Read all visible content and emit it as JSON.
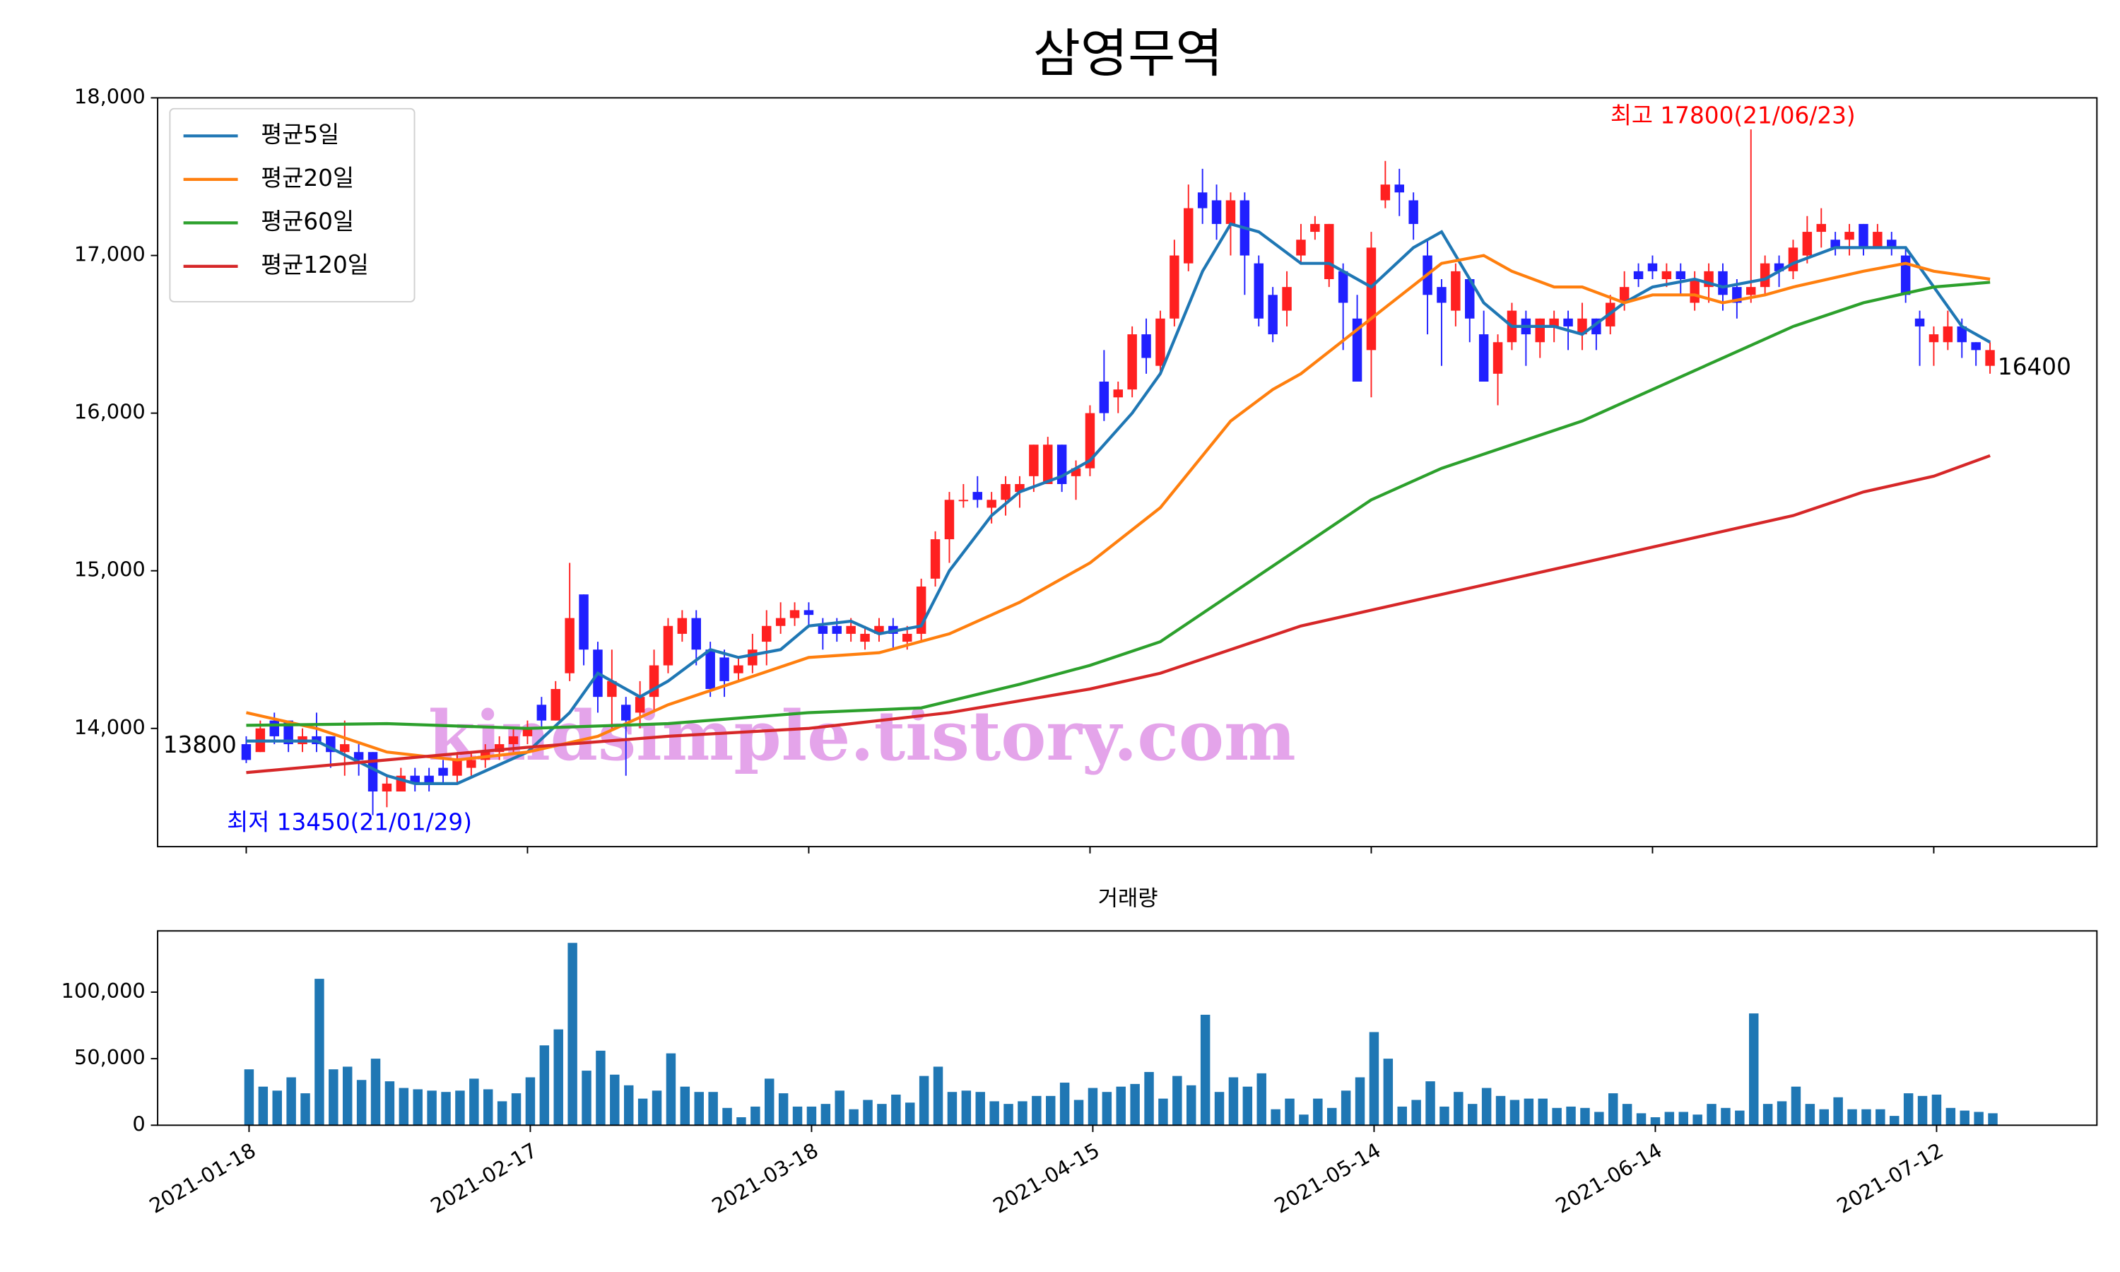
{
  "watermark": "kindsimple.tistory.com",
  "chart_data": [
    {
      "type": "candlestick",
      "title": "삼영무역",
      "up_color": "#ff2020",
      "down_color": "#2020ff",
      "open": [
        13900,
        13850,
        14050,
        14050,
        13900,
        13950,
        13950,
        13850,
        13850,
        13850,
        13600,
        13600,
        13700,
        13700,
        13750,
        13700,
        13750,
        13800,
        13850,
        13900,
        13950,
        14150,
        14050,
        14350,
        14850,
        14500,
        14200,
        14150,
        14100,
        14200,
        14400,
        14600,
        14700,
        14500,
        14450,
        14350,
        14400,
        14550,
        14650,
        14700,
        14750,
        14650,
        14650,
        14600,
        14550,
        14600,
        14650,
        14550,
        14600,
        14950,
        15200,
        15450,
        15500,
        15400,
        15450,
        15500,
        15600,
        15550,
        15800,
        15600,
        15650,
        16200,
        16100,
        16150,
        16500,
        16300,
        16600,
        16950,
        17400,
        17350,
        17200,
        17350,
        16950,
        16750,
        16650,
        17000,
        17150,
        16850,
        16900,
        16600,
        16400,
        17350,
        17450,
        17350,
        17000,
        16800,
        16650,
        16850,
        16500,
        16250,
        16450,
        16600,
        16450,
        16550,
        16600,
        16500,
        16600,
        16550,
        16700,
        16900,
        16950,
        16850,
        16900,
        16700,
        16800,
        16900,
        16800,
        16750,
        16800,
        16950,
        16900,
        17000,
        17150,
        17100,
        17100,
        17200,
        17050,
        17100,
        17000,
        16600,
        16450,
        16450,
        16550,
        16450,
        16300
      ],
      "high": [
        13950,
        14050,
        14100,
        14050,
        14000,
        14100,
        13950,
        14050,
        13900,
        13850,
        13700,
        13750,
        13750,
        13750,
        13800,
        13850,
        13850,
        13900,
        13950,
        14000,
        14050,
        14200,
        14300,
        15050,
        14850,
        14550,
        14500,
        14200,
        14300,
        14500,
        14700,
        14750,
        14750,
        14550,
        14500,
        14450,
        14600,
        14750,
        14800,
        14800,
        14800,
        14700,
        14700,
        14700,
        14650,
        14700,
        14700,
        14650,
        14950,
        15250,
        15500,
        15550,
        15600,
        15500,
        15600,
        15600,
        15800,
        15850,
        15800,
        15700,
        16050,
        16400,
        16200,
        16550,
        16600,
        16650,
        17100,
        17450,
        17550,
        17450,
        17400,
        17400,
        17000,
        16800,
        16900,
        17200,
        17250,
        17200,
        16950,
        16750,
        17150,
        17600,
        17550,
        17400,
        17100,
        16850,
        16950,
        16850,
        16650,
        16500,
        16700,
        16650,
        16600,
        16650,
        16650,
        16700,
        16600,
        16750,
        16900,
        16950,
        17000,
        16950,
        16950,
        16900,
        16950,
        16950,
        16850,
        17800,
        17000,
        17000,
        17100,
        17250,
        17300,
        17150,
        17200,
        17200,
        17200,
        17150,
        17050,
        16650,
        16550,
        16650,
        16600,
        16450,
        16450
      ],
      "low": [
        13780,
        13850,
        13900,
        13850,
        13850,
        13850,
        13750,
        13700,
        13700,
        13450,
        13500,
        13600,
        13600,
        13600,
        13650,
        13650,
        13700,
        13750,
        13800,
        13850,
        13900,
        14000,
        14050,
        14300,
        14400,
        14100,
        14000,
        13700,
        14000,
        14100,
        14350,
        14550,
        14400,
        14200,
        14200,
        14300,
        14350,
        14400,
        14600,
        14650,
        14650,
        14500,
        14550,
        14550,
        14500,
        14550,
        14500,
        14500,
        14550,
        14900,
        15050,
        15400,
        15400,
        15300,
        15350,
        15400,
        15500,
        15550,
        15500,
        15450,
        15600,
        15950,
        16000,
        16100,
        16250,
        16250,
        16550,
        16900,
        17200,
        17100,
        17000,
        16750,
        16550,
        16450,
        16550,
        16950,
        17100,
        16800,
        16400,
        16200,
        16100,
        17300,
        17250,
        17100,
        16500,
        16300,
        16550,
        16450,
        16200,
        16050,
        16400,
        16300,
        16350,
        16450,
        16400,
        16400,
        16400,
        16500,
        16650,
        16800,
        16850,
        16800,
        16750,
        16650,
        16700,
        16650,
        16600,
        16700,
        16750,
        16800,
        16850,
        16950,
        17050,
        17000,
        17000,
        17000,
        17050,
        17000,
        16700,
        16300,
        16300,
        16400,
        16350,
        16300,
        16250
      ],
      "close": [
        13800,
        14000,
        13950,
        13900,
        13950,
        13900,
        13850,
        13900,
        13800,
        13600,
        13650,
        13700,
        13650,
        13650,
        13700,
        13800,
        13800,
        13850,
        13900,
        13950,
        14000,
        14050,
        14250,
        14700,
        14500,
        14200,
        14300,
        14050,
        14200,
        14400,
        14650,
        14700,
        14500,
        14250,
        14300,
        14400,
        14500,
        14650,
        14700,
        14750,
        14720,
        14600,
        14600,
        14650,
        14600,
        14650,
        14600,
        14600,
        14900,
        15200,
        15450,
        15450,
        15450,
        15450,
        15550,
        15550,
        15800,
        15800,
        15550,
        15650,
        16000,
        16000,
        16150,
        16500,
        16350,
        16600,
        17000,
        17300,
        17300,
        17200,
        17350,
        17000,
        16600,
        16500,
        16800,
        17100,
        17200,
        17200,
        16700,
        16200,
        17050,
        17450,
        17400,
        17200,
        16750,
        16700,
        16900,
        16600,
        16200,
        16450,
        16650,
        16500,
        16600,
        16600,
        16550,
        16600,
        16500,
        16700,
        16800,
        16850,
        16900,
        16900,
        16850,
        16850,
        16900,
        16750,
        16700,
        16800,
        16950,
        16900,
        17050,
        17150,
        17200,
        17050,
        17150,
        17050,
        17150,
        17050,
        16750,
        16550,
        16500,
        16550,
        16450,
        16400,
        16400
      ],
      "series": [
        {
          "name": "평균5일",
          "color": "#1f77b4",
          "x": [
            0,
            5,
            10,
            12,
            15,
            20,
            23,
            25,
            28,
            30,
            33,
            35,
            38,
            40,
            43,
            45,
            48,
            50,
            53,
            55,
            58,
            60,
            63,
            65,
            68,
            70,
            72,
            75,
            77,
            79,
            80,
            83,
            85,
            88,
            90,
            93,
            95,
            98,
            100,
            103,
            105,
            108,
            110,
            113,
            115,
            118,
            120,
            122,
            124
          ],
          "values": [
            13920,
            13920,
            13700,
            13650,
            13650,
            13850,
            14100,
            14350,
            14200,
            14300,
            14500,
            14450,
            14500,
            14650,
            14680,
            14600,
            14650,
            15000,
            15350,
            15500,
            15600,
            15700,
            16000,
            16250,
            16900,
            17200,
            17150,
            16950,
            16950,
            16850,
            16800,
            17050,
            17150,
            16700,
            16550,
            16550,
            16500,
            16700,
            16800,
            16850,
            16800,
            16850,
            16950,
            17050,
            17050,
            17050,
            16800,
            16550,
            16450
          ]
        },
        {
          "name": "평균20일",
          "color": "#ff7f0e",
          "x": [
            0,
            5,
            10,
            15,
            20,
            25,
            30,
            35,
            40,
            45,
            50,
            55,
            60,
            65,
            70,
            73,
            75,
            80,
            85,
            88,
            90,
            93,
            95,
            98,
            100,
            103,
            105,
            108,
            110,
            115,
            118,
            120,
            124
          ],
          "values": [
            14100,
            14000,
            13850,
            13800,
            13850,
            13950,
            14150,
            14300,
            14450,
            14480,
            14600,
            14800,
            15050,
            15400,
            15950,
            16150,
            16250,
            16600,
            16950,
            17000,
            16900,
            16800,
            16800,
            16700,
            16750,
            16750,
            16700,
            16750,
            16800,
            16900,
            16950,
            16900,
            16850
          ]
        },
        {
          "name": "평균60일",
          "color": "#2ca02c",
          "x": [
            0,
            10,
            20,
            30,
            40,
            48,
            55,
            60,
            65,
            70,
            75,
            80,
            85,
            90,
            95,
            100,
            105,
            110,
            115,
            120,
            124
          ],
          "values": [
            14020,
            14030,
            14000,
            14030,
            14100,
            14130,
            14280,
            14400,
            14550,
            14850,
            15150,
            15450,
            15650,
            15800,
            15950,
            16150,
            16350,
            16550,
            16700,
            16800,
            16830
          ]
        },
        {
          "name": "평균120일",
          "color": "#d62728",
          "x": [
            0,
            10,
            20,
            30,
            40,
            50,
            60,
            65,
            70,
            75,
            80,
            85,
            90,
            95,
            100,
            105,
            110,
            115,
            120,
            124
          ],
          "values": [
            13720,
            13800,
            13880,
            13950,
            14000,
            14100,
            14250,
            14350,
            14500,
            14650,
            14750,
            14850,
            14950,
            15050,
            15150,
            15250,
            15350,
            15500,
            15600,
            15730
          ]
        }
      ],
      "legend": "upper left",
      "annotations": [
        {
          "text": "최고 17800(21/06/23)",
          "color": "#ff0000"
        },
        {
          "text": "최저 13450(21/01/29)",
          "color": "#0000ff"
        },
        {
          "text": "13800",
          "color": "#000000"
        },
        {
          "text": "16400",
          "color": "#000000"
        }
      ],
      "xlim": [
        -6.3,
        131.6
      ],
      "ylim": [
        13250,
        18000
      ],
      "yticks": [
        {
          "value": 14000,
          "label": "14,000"
        },
        {
          "value": 15000,
          "label": "15,000"
        },
        {
          "value": 16000,
          "label": "16,000"
        },
        {
          "value": 17000,
          "label": "17,000"
        },
        {
          "value": 18000,
          "label": "18,000"
        }
      ]
    },
    {
      "type": "bar",
      "title": "거래량",
      "color": "#1f77b4",
      "categories": [
        "2021-01-18",
        null,
        null,
        null,
        null,
        null,
        null,
        null,
        null,
        null,
        null,
        null,
        null,
        null,
        null,
        null,
        null,
        null,
        null,
        null,
        "2021-02-17",
        null,
        null,
        null,
        null,
        null,
        null,
        null,
        null,
        null,
        null,
        null,
        null,
        null,
        null,
        null,
        null,
        null,
        null,
        null,
        "2021-03-18",
        null,
        null,
        null,
        null,
        null,
        null,
        null,
        null,
        null,
        null,
        null,
        null,
        null,
        null,
        null,
        null,
        null,
        null,
        null,
        "2021-04-15",
        null,
        null,
        null,
        null,
        null,
        null,
        null,
        null,
        null,
        null,
        null,
        null,
        null,
        null,
        null,
        null,
        null,
        null,
        null,
        "2021-05-14",
        null,
        null,
        null,
        null,
        null,
        null,
        null,
        null,
        null,
        null,
        null,
        null,
        null,
        null,
        null,
        null,
        null,
        null,
        null,
        "2021-06-14",
        null,
        null,
        null,
        null,
        null,
        null,
        null,
        null,
        null,
        null,
        null,
        null,
        null,
        null,
        null,
        null,
        null,
        null,
        null,
        "2021-07-12",
        null,
        null,
        null,
        null
      ],
      "values": [
        42000,
        29000,
        26000,
        36000,
        24000,
        110000,
        42000,
        44000,
        34000,
        50000,
        33000,
        28000,
        27000,
        26000,
        25000,
        26000,
        35000,
        27000,
        18000,
        24000,
        36000,
        60000,
        72000,
        137000,
        41000,
        56000,
        38000,
        30000,
        20000,
        26000,
        54000,
        29000,
        25000,
        25000,
        13000,
        6000,
        14000,
        35000,
        24000,
        14000,
        14000,
        16000,
        26000,
        12000,
        19000,
        16000,
        23000,
        17000,
        37000,
        44000,
        25000,
        26000,
        25000,
        18000,
        16000,
        18000,
        22000,
        22000,
        32000,
        19000,
        28000,
        25000,
        29000,
        31000,
        40000,
        20000,
        37000,
        30000,
        83000,
        25000,
        36000,
        29000,
        39000,
        12000,
        20000,
        8000,
        20000,
        13000,
        26000,
        36000,
        70000,
        50000,
        14000,
        19000,
        33000,
        14000,
        25000,
        16000,
        28000,
        22000,
        19000,
        20000,
        20000,
        13000,
        14000,
        13000,
        10000,
        24000,
        16000,
        9000,
        6000,
        10000,
        10000,
        8000,
        16000,
        13000,
        11000,
        84000,
        16000,
        18000,
        29000,
        16000,
        12000,
        21000,
        12000,
        12000,
        12000,
        7000,
        24000,
        22000,
        23000,
        13000,
        11000,
        10000,
        9000
      ],
      "xlim": [
        -6.5,
        131.4
      ],
      "ylim": [
        0,
        146000
      ],
      "yticks": [
        0,
        {
          "value": 50000,
          "label": "50,000"
        },
        {
          "value": 100000,
          "label": "100,000"
        }
      ]
    }
  ]
}
